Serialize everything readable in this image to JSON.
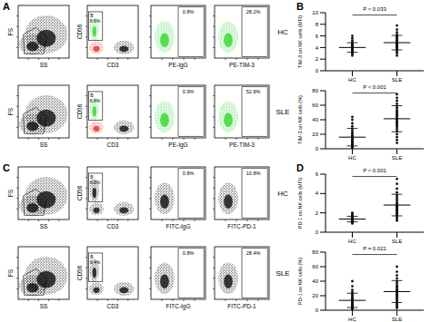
{
  "flow_panels": [
    {
      "panel": "A",
      "colors": [
        "#2bd12b",
        "#e3261f"
      ],
      "x_labels": [
        "SS",
        "CD3",
        "PE-IgG",
        "PE-TIM-3"
      ],
      "y_labels": [
        "FS",
        "CD56"
      ],
      "gate": "B",
      "rows": [
        {
          "name": "HC",
          "percentages": [
            "8.6%",
            "0.8%",
            "28.2%"
          ]
        },
        {
          "name": "SLE",
          "percentages": [
            "6.8%",
            "0.9%",
            "52.9%"
          ]
        }
      ]
    },
    {
      "panel": "C",
      "x_labels": [
        "SS",
        "CD3",
        "FITC-IgG",
        "FITC-PD-1"
      ],
      "y_labels": [
        "FS",
        "CD56"
      ],
      "gate": "B",
      "rows": [
        {
          "name": "HC",
          "percentages": [
            "8.8%",
            "0.8%",
            "10.8%"
          ]
        },
        {
          "name": "SLE",
          "percentages": [
            "6.4%",
            "0.8%",
            "28.4%"
          ]
        }
      ]
    }
  ],
  "chart_data": [
    {
      "panel": "B",
      "type": "scatter",
      "y_label": "TIM-3 on NK cells (MFI)",
      "categories": [
        "HC",
        "SLE"
      ],
      "values": [
        [
          2.6,
          2.9,
          3.1,
          3.2,
          3.3,
          3.4,
          3.5,
          3.5,
          3.6,
          3.7,
          3.8,
          3.8,
          3.9,
          4.0,
          4.0,
          4.1,
          4.2,
          4.3,
          4.4,
          4.5,
          4.7,
          4.9,
          5.2,
          5.6,
          6.0
        ],
        [
          2.6,
          3.0,
          3.3,
          3.6,
          3.8,
          4.0,
          4.1,
          4.2,
          4.3,
          4.4,
          4.5,
          4.6,
          4.7,
          4.8,
          4.9,
          5.0,
          5.1,
          5.3,
          5.5,
          5.7,
          5.9,
          6.2,
          6.6,
          7.1,
          7.8
        ]
      ],
      "color": "#111111",
      "ylim": [
        0,
        10
      ],
      "yticks": [
        0,
        2,
        4,
        6,
        8,
        10
      ],
      "annotation": "P < 0.033"
    },
    {
      "type": "scatter",
      "y_label": "TIM-3 on NK cells (%)",
      "categories": [
        "HC",
        "SLE"
      ],
      "values": [
        [
          1,
          2,
          3,
          4,
          5,
          6,
          7,
          8,
          9,
          10,
          11,
          12,
          13,
          14,
          15,
          17,
          18,
          20,
          22,
          25,
          28,
          31,
          35,
          40,
          44
        ],
        [
          8,
          12,
          16,
          20,
          24,
          27,
          30,
          32,
          34,
          36,
          38,
          40,
          41,
          43,
          45,
          47,
          49,
          51,
          53,
          56,
          59,
          62,
          66,
          70,
          75
        ]
      ],
      "color": "#111111",
      "ylim": [
        0,
        80
      ],
      "yticks": [
        0,
        20,
        40,
        60,
        80
      ],
      "annotation": "P < 0.001"
    },
    {
      "panel": "D",
      "type": "scatter",
      "y_label": "PD-1 on NK cells (MFI)",
      "categories": [
        "HC",
        "SLE"
      ],
      "values": [
        [
          0.9,
          1.0,
          1.0,
          1.1,
          1.1,
          1.1,
          1.2,
          1.2,
          1.2,
          1.2,
          1.3,
          1.3,
          1.3,
          1.3,
          1.4,
          1.4,
          1.4,
          1.5,
          1.5,
          1.6,
          1.6,
          1.7,
          1.8,
          1.9,
          2.0
        ],
        [
          1.2,
          1.4,
          1.6,
          1.7,
          1.8,
          1.9,
          2.0,
          2.1,
          2.2,
          2.3,
          2.4,
          2.5,
          2.6,
          2.7,
          2.8,
          2.9,
          3.0,
          3.2,
          3.4,
          3.6,
          3.8,
          4.1,
          4.5,
          5.0,
          5.5
        ]
      ],
      "color": "#111111",
      "ylim": [
        0,
        6
      ],
      "yticks": [
        0,
        2,
        4,
        6
      ],
      "annotation": "P < 0.001"
    },
    {
      "type": "scatter",
      "y_label": "PD-1 on NK cells (%)",
      "categories": [
        "HC",
        "SLE"
      ],
      "values": [
        [
          1,
          2,
          3,
          4,
          5,
          6,
          7,
          7,
          8,
          9,
          10,
          10,
          11,
          12,
          13,
          14,
          15,
          16,
          18,
          20,
          22,
          25,
          28,
          33,
          40
        ],
        [
          3,
          5,
          7,
          9,
          11,
          13,
          15,
          17,
          18,
          20,
          21,
          22,
          24,
          25,
          27,
          28,
          30,
          32,
          34,
          37,
          40,
          44,
          48,
          53,
          60
        ]
      ],
      "color": "#111111",
      "ylim": [
        0,
        80
      ],
      "yticks": [
        0,
        20,
        40,
        60,
        80
      ],
      "annotation": "P = 0.021"
    }
  ]
}
